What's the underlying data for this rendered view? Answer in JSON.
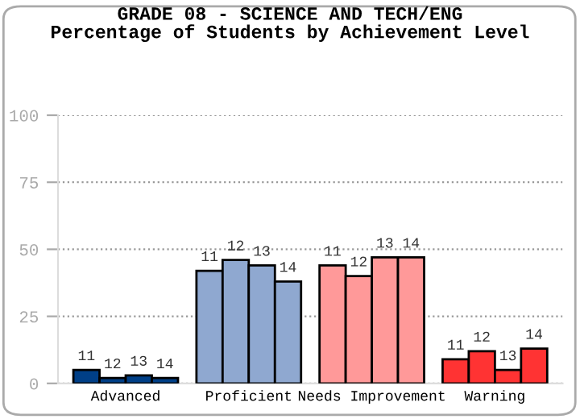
{
  "chart_data": {
    "type": "bar",
    "title": "GRADE 08 - SCIENCE AND TECH/ENG\nPercentage of Students by Achievement Level",
    "categories": [
      "Advanced",
      "Proficient",
      "Needs Improvement",
      "Warning"
    ],
    "series": [
      {
        "name": "11",
        "colors": [
          "#003f87",
          "#8fa8d0",
          "#ff9999",
          "#ff3333"
        ],
        "values": [
          5,
          42,
          44,
          9
        ]
      },
      {
        "name": "12",
        "colors": [
          "#003f87",
          "#8fa8d0",
          "#ff9999",
          "#ff3333"
        ],
        "values": [
          2,
          46,
          40,
          12
        ]
      },
      {
        "name": "13",
        "colors": [
          "#003f87",
          "#8fa8d0",
          "#ff9999",
          "#ff3333"
        ],
        "values": [
          3,
          44,
          47,
          5
        ]
      },
      {
        "name": "14",
        "colors": [
          "#003f87",
          "#8fa8d0",
          "#ff9999",
          "#ff3333"
        ],
        "values": [
          2,
          38,
          47,
          13
        ]
      }
    ],
    "ylim": [
      0,
      100
    ],
    "yticks": [
      0,
      25,
      50,
      75,
      100
    ],
    "grid": "y",
    "legend": false
  }
}
